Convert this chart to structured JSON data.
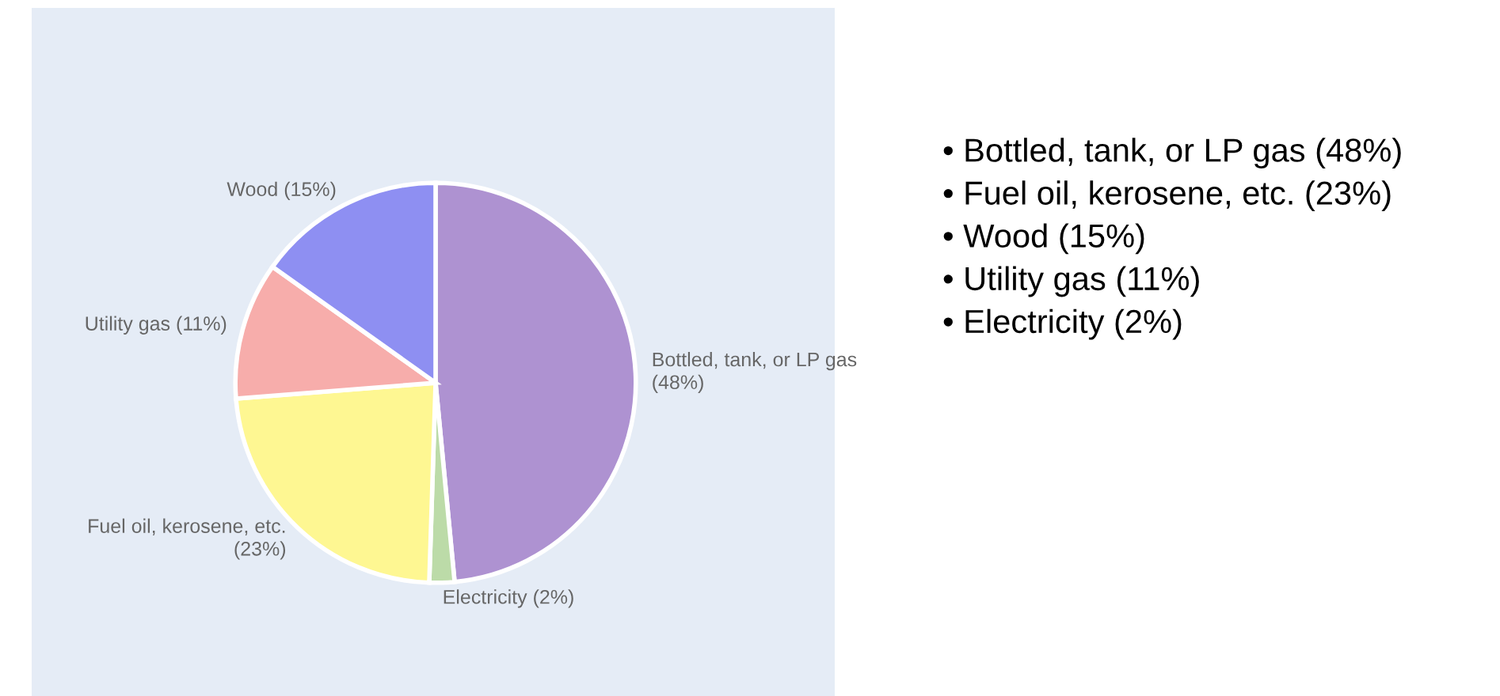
{
  "chart_data": {
    "type": "pie",
    "categories": [
      "Bottled, tank, or LP gas",
      "Electricity",
      "Fuel oil, kerosene, etc.",
      "Utility gas",
      "Wood"
    ],
    "values": [
      48,
      2,
      23,
      11,
      15
    ],
    "value_labels": [
      "(48%)",
      "(2%)",
      "(23%)",
      "(11%)",
      "(15%)"
    ],
    "colors": [
      "#ae92d1",
      "#bcdba8",
      "#fef792",
      "#f7adab",
      "#8e8ff2"
    ],
    "annotations": [
      "• Bottled, tank, or LP gas (48%)",
      "• Fuel oil, kerosene, etc. (23%)",
      "• Wood (15%)",
      "• Utility gas (11%)",
      "• Electricity (2%)"
    ]
  }
}
